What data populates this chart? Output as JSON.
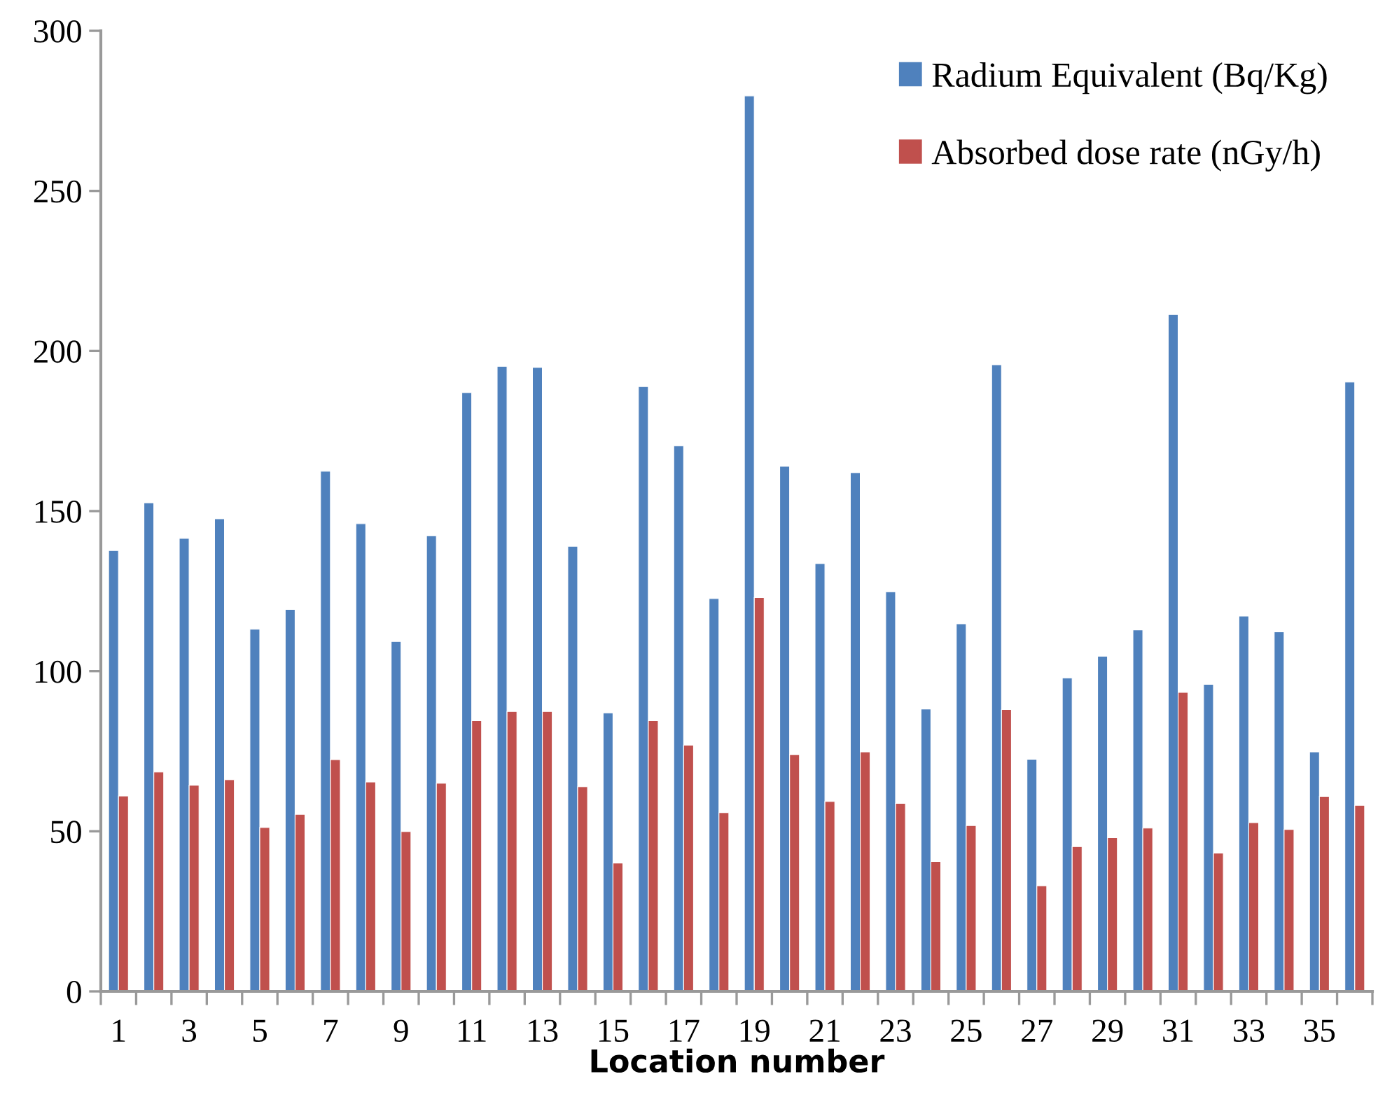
{
  "chart_data": {
    "type": "bar",
    "xlabel": "Location number",
    "categories": [
      "1",
      null,
      "3",
      null,
      "5",
      null,
      "7",
      null,
      "9",
      null,
      "11",
      null,
      "13",
      null,
      "15",
      null,
      "17",
      null,
      "19",
      null,
      "21",
      null,
      "23",
      null,
      "25",
      null,
      "27",
      null,
      "29",
      null,
      "31",
      null,
      "33",
      null,
      "35",
      null
    ],
    "series": [
      {
        "name": "Radium Equivalent (Bq/Kg)",
        "color": "#4f81bd",
        "values": [
          137.7,
          152.6,
          141.5,
          147.6,
          113.1,
          119.3,
          162.5,
          146.1,
          109.3,
          142.3,
          187.0,
          195.2,
          194.9,
          139.0,
          87.0,
          188.9,
          170.4,
          122.7,
          279.7,
          164.0,
          133.6,
          162.0,
          124.8,
          88.2,
          114.8,
          195.7,
          72.5,
          97.9,
          104.7,
          112.9,
          211.4,
          95.9,
          117.2,
          112.3,
          74.8,
          190.3
        ]
      },
      {
        "name": "Absorbed dose rate (nGy/h)",
        "color": "#c0504d",
        "values": [
          61.0,
          68.5,
          64.4,
          66.1,
          51.2,
          55.3,
          72.4,
          65.4,
          49.9,
          65.0,
          84.5,
          87.4,
          87.4,
          63.9,
          40.1,
          84.5,
          76.9,
          55.8,
          123.0,
          74.0,
          59.3,
          74.8,
          58.7,
          40.6,
          51.8,
          88.0,
          33.0,
          45.2,
          48.0,
          51.0,
          93.4,
          43.2,
          52.7,
          50.6,
          60.9,
          58.1
        ]
      }
    ],
    "ylim": [
      0,
      300
    ],
    "yticks": [
      0,
      50,
      100,
      150,
      200,
      250,
      300
    ],
    "grid": false,
    "legend": "top right"
  }
}
